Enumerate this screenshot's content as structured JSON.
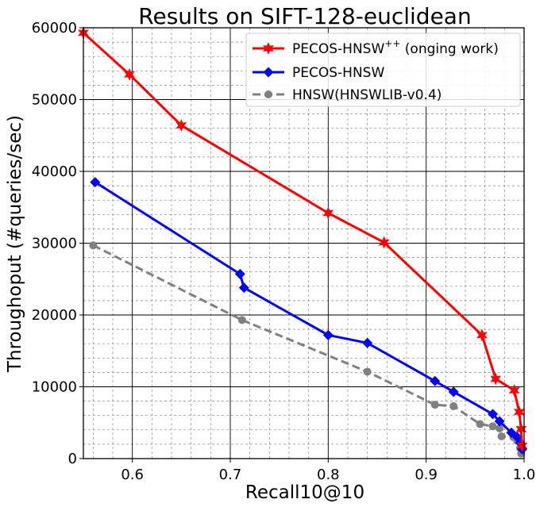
{
  "chart_data": {
    "type": "line",
    "title": "Results on SIFT-128-euclidean",
    "xlabel": "Recall10@10",
    "ylabel": "Throughoput (#queries/sec)",
    "xlim": [
      0.55,
      1.0
    ],
    "ylim": [
      0,
      60000
    ],
    "x_ticks": [
      0.6,
      0.7,
      0.8,
      0.9,
      1.0
    ],
    "x_tick_labels": [
      "0.6",
      "0.7",
      "0.8",
      "0.9",
      "1.0"
    ],
    "y_ticks": [
      0,
      10000,
      20000,
      30000,
      40000,
      50000,
      60000
    ],
    "y_tick_labels": [
      "0",
      "10000",
      "20000",
      "30000",
      "40000",
      "50000",
      "60000"
    ],
    "grid": {
      "major": true,
      "minor": true
    },
    "legend_position": "top-right",
    "series": [
      {
        "name": "PECOS-HNSW++ (onging work)",
        "legend_main": "PECOS-HNSW",
        "legend_sup": "++",
        "legend_rest": " (onging work)",
        "color": "#ff0000",
        "marker": "star",
        "linestyle": "solid",
        "x": [
          0.55,
          0.597,
          0.65,
          0.8,
          0.857,
          0.957,
          0.971,
          0.99,
          0.995,
          0.997,
          0.998
        ],
        "y": [
          59300,
          53500,
          46400,
          34200,
          30100,
          17200,
          11100,
          9500,
          6500,
          4100,
          1800
        ]
      },
      {
        "name": "PECOS-HNSW",
        "color": "#0000ff",
        "marker": "diamond",
        "linestyle": "solid",
        "x": [
          0.562,
          0.71,
          0.714,
          0.8,
          0.84,
          0.909,
          0.928,
          0.968,
          0.975,
          0.987,
          0.993,
          0.996,
          0.998
        ],
        "y": [
          38500,
          25700,
          23800,
          17200,
          16100,
          10800,
          9300,
          6200,
          5200,
          3600,
          3000,
          2200,
          1300
        ]
      },
      {
        "name": "HNSW(HNSWLIB-v0.4)",
        "color": "#808080",
        "marker": "circle",
        "linestyle": "dashed",
        "x": [
          0.56,
          0.712,
          0.84,
          0.909,
          0.928,
          0.955,
          0.968,
          0.975,
          0.977,
          0.989,
          0.993,
          0.996,
          0.997
        ],
        "y": [
          29700,
          19300,
          12100,
          7500,
          7300,
          4800,
          4500,
          4200,
          3100,
          3000,
          2500,
          1500,
          700
        ]
      }
    ]
  }
}
